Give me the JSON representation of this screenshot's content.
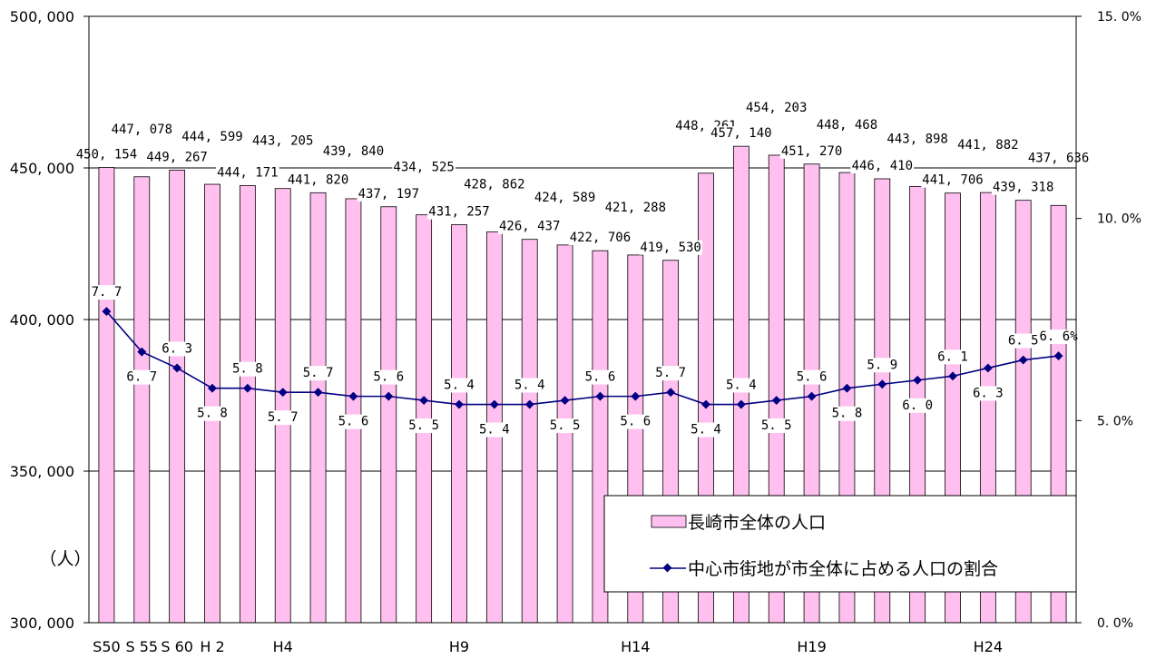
{
  "chart_data": {
    "type": "bar",
    "categories": [
      "S50",
      "S55",
      "S60",
      "H2",
      "H3",
      "H4",
      "H5",
      "H6",
      "H7",
      "H8",
      "H9",
      "H10",
      "H11",
      "H12",
      "H13",
      "H14",
      "H15",
      "H16",
      "H17",
      "H18",
      "H19",
      "H20",
      "H21",
      "H22",
      "H23",
      "H24",
      "H25",
      "H26"
    ],
    "x_tick_labels": [
      {
        "index": 0,
        "label": "S50"
      },
      {
        "index": 1,
        "label": "S 55"
      },
      {
        "index": 2,
        "label": "S 60"
      },
      {
        "index": 3,
        "label": "H 2"
      },
      {
        "index": 5,
        "label": "H4"
      },
      {
        "index": 10,
        "label": "H9"
      },
      {
        "index": 15,
        "label": "H14"
      },
      {
        "index": 20,
        "label": "H19"
      },
      {
        "index": 25,
        "label": "H24"
      }
    ],
    "series": [
      {
        "name": "長崎市全体の人口",
        "kind": "bar",
        "axis": "left",
        "color": "#ffc0f0",
        "values": [
          450154,
          447078,
          449267,
          444599,
          444171,
          443205,
          441820,
          439840,
          437197,
          434525,
          431257,
          428862,
          426437,
          424589,
          422706,
          421288,
          419530,
          448261,
          457140,
          454203,
          451270,
          448468,
          446410,
          443898,
          441706,
          441882,
          439318,
          437636
        ],
        "labels": [
          "450, 154",
          "447, 078",
          "449, 267",
          "444, 599",
          "444, 171",
          "443, 205",
          "441, 820",
          "439, 840",
          "437, 197",
          "434, 525",
          "431, 257",
          "428, 862",
          "426, 437",
          "424, 589",
          "422, 706",
          "421, 288",
          "419, 530",
          "448, 261",
          "457, 140",
          "454, 203",
          "451, 270",
          "448, 468",
          "446, 410",
          "443, 898",
          "441, 706",
          "441, 882",
          "439, 318",
          "437, 636"
        ]
      },
      {
        "name": "中心市街地が市全体に占める人口の割合",
        "kind": "line",
        "axis": "right",
        "color": "#000080",
        "values": [
          7.7,
          6.7,
          6.3,
          5.8,
          5.8,
          5.7,
          5.7,
          5.6,
          5.6,
          5.5,
          5.4,
          5.4,
          5.4,
          5.5,
          5.6,
          5.6,
          5.7,
          5.4,
          5.4,
          5.5,
          5.6,
          5.8,
          5.9,
          6.0,
          6.1,
          6.3,
          6.5,
          6.6
        ],
        "labels": [
          "7. 7",
          "6. 7",
          "6. 3",
          "5. 8",
          "5. 8",
          "5. 7",
          "5. 7",
          "5. 6",
          "5. 6",
          "5. 5",
          "5. 4",
          "5. 4",
          "5. 4",
          "5. 5",
          "5. 6",
          "5. 6",
          "5. 7",
          "5. 4",
          "5. 4",
          "5. 5",
          "5. 6",
          "5. 8",
          "5. 9",
          "6. 0",
          "6. 1",
          "6. 3",
          "6. 5",
          "6. 6%"
        ],
        "label_side": [
          "above",
          "below",
          "above",
          "below",
          "above",
          "below",
          "above",
          "below",
          "above",
          "below",
          "above",
          "below",
          "above",
          "below",
          "above",
          "below",
          "above",
          "below",
          "above",
          "below",
          "above",
          "below",
          "above",
          "below",
          "above",
          "below",
          "above",
          "above"
        ]
      }
    ],
    "y_left": {
      "min": 300000,
      "max": 500000,
      "ticks": [
        300000,
        350000,
        400000,
        450000,
        500000
      ],
      "tick_labels": [
        "300, 000",
        "350, 000",
        "400, 000",
        "450, 000",
        "500, 000"
      ],
      "unit": "（人）"
    },
    "y_right": {
      "min": 0,
      "max": 15,
      "ticks": [
        0,
        5,
        10,
        15
      ],
      "tick_labels": [
        "0. 0%",
        "5. 0%",
        "10. 0%",
        "15. 0%"
      ]
    },
    "grid": true,
    "legend": {
      "placement": "bottom-right"
    }
  }
}
